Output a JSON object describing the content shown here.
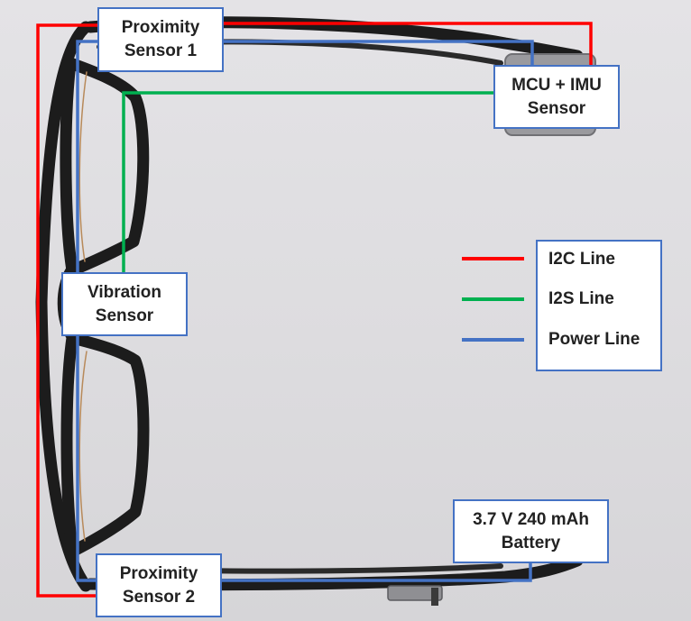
{
  "labels": {
    "proximity_sensor_1": [
      "Proximity",
      "Sensor 1"
    ],
    "mcu_imu_sensor": [
      "MCU + IMU",
      "Sensor"
    ],
    "vibration_sensor": [
      "Vibration",
      "Sensor"
    ],
    "proximity_sensor_2": [
      "Proximity",
      "Sensor 2"
    ],
    "battery": [
      "3.7 V 240 mAh",
      "Battery"
    ]
  },
  "legend": {
    "i2c": "I2C Line",
    "i2s": "I2S Line",
    "power": "Power Line"
  },
  "colors": {
    "i2c": "#ff0000",
    "i2s": "#00b050",
    "power": "#4472c4",
    "frame": "#1c1c1c"
  }
}
